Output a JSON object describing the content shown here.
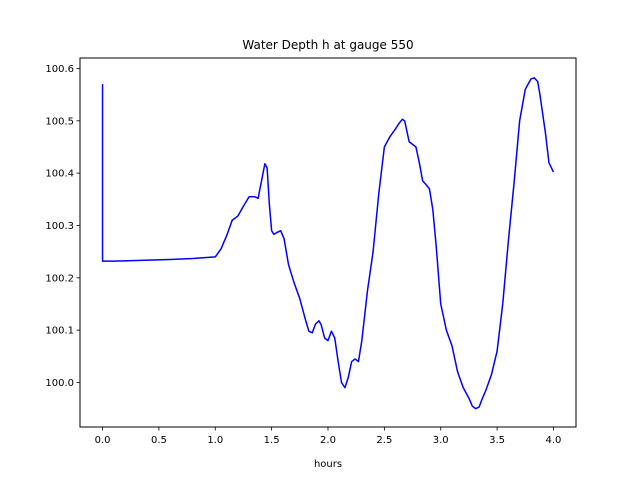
{
  "chart_data": {
    "type": "line",
    "title": "Water Depth h at gauge 550",
    "xlabel": "hours",
    "ylabel": "",
    "xlim": [
      -0.2,
      4.2
    ],
    "ylim": [
      99.915,
      100.62
    ],
    "x_ticks": [
      0.0,
      0.5,
      1.0,
      1.5,
      2.0,
      2.5,
      3.0,
      3.5,
      4.0
    ],
    "x_tick_labels": [
      "0.0",
      "0.5",
      "1.0",
      "1.5",
      "2.0",
      "2.5",
      "3.0",
      "3.5",
      "4.0"
    ],
    "y_ticks": [
      100.0,
      100.1,
      100.2,
      100.3,
      100.4,
      100.5,
      100.6
    ],
    "y_tick_labels": [
      "100.0",
      "100.1",
      "100.2",
      "100.3",
      "100.4",
      "100.5",
      "100.6"
    ],
    "grid": false,
    "color": "#0000ff",
    "series": [
      {
        "x": [
          0.0,
          0.0,
          0.0,
          0.1,
          0.3,
          0.6,
          0.8,
          1.0,
          1.05,
          1.1,
          1.15,
          1.2,
          1.25,
          1.3,
          1.35,
          1.38,
          1.41,
          1.44,
          1.46,
          1.48,
          1.5,
          1.52,
          1.55,
          1.58,
          1.61,
          1.65,
          1.7,
          1.75,
          1.8,
          1.83,
          1.86,
          1.89,
          1.92,
          1.94,
          1.97,
          2.0,
          2.03,
          2.06,
          2.09,
          2.12,
          2.15,
          2.18,
          2.21,
          2.24,
          2.27,
          2.3,
          2.35,
          2.4,
          2.45,
          2.5,
          2.55,
          2.6,
          2.63,
          2.66,
          2.68,
          2.7,
          2.72,
          2.75,
          2.78,
          2.81,
          2.84,
          2.87,
          2.9,
          2.93,
          2.96,
          3.0,
          3.05,
          3.1,
          3.15,
          3.2,
          3.25,
          3.28,
          3.31,
          3.34,
          3.37,
          3.4,
          3.45,
          3.5,
          3.55,
          3.6,
          3.65,
          3.7,
          3.75,
          3.8,
          3.83,
          3.86,
          3.88,
          3.9,
          3.93,
          3.96,
          4.0
        ],
        "y": [
          100.57,
          100.35,
          100.232,
          100.232,
          100.233,
          100.235,
          100.237,
          100.24,
          100.255,
          100.28,
          100.31,
          100.318,
          100.337,
          100.355,
          100.355,
          100.352,
          100.385,
          100.418,
          100.41,
          100.34,
          100.29,
          100.283,
          100.287,
          100.29,
          100.275,
          100.225,
          100.19,
          100.16,
          100.12,
          100.098,
          100.095,
          100.112,
          100.118,
          100.11,
          100.085,
          100.08,
          100.098,
          100.085,
          100.04,
          100.0,
          99.99,
          100.01,
          100.04,
          100.045,
          100.04,
          100.08,
          100.175,
          100.25,
          100.36,
          100.45,
          100.47,
          100.485,
          100.495,
          100.503,
          100.5,
          100.48,
          100.46,
          100.455,
          100.45,
          100.42,
          100.385,
          100.378,
          100.37,
          100.33,
          100.26,
          100.15,
          100.1,
          100.07,
          100.02,
          99.99,
          99.97,
          99.955,
          99.95,
          99.953,
          99.97,
          99.985,
          100.015,
          100.06,
          100.15,
          100.27,
          100.38,
          100.5,
          100.56,
          100.58,
          100.582,
          100.575,
          100.55,
          100.52,
          100.475,
          100.42,
          100.402
        ]
      }
    ]
  }
}
